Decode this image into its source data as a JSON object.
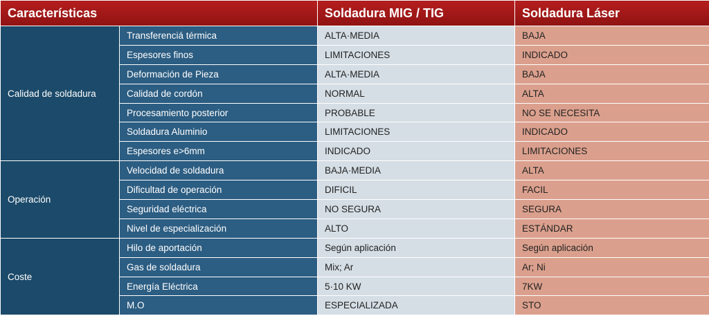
{
  "header": [
    "Características",
    "Soldadura MIG / TIG",
    "Soldadura Láser"
  ],
  "groups": [
    {
      "label": "Calidad de soldadura",
      "rows": [
        [
          "Transferenciá térmica",
          "ALTA·MEDIA",
          "BAJA"
        ],
        [
          "Espesores finos",
          "LIMITACIONES",
          "INDICADO"
        ],
        [
          "Deformación de Pieza",
          "ALTA·MEDIA",
          "BAJA"
        ],
        [
          "Calidad de cordón",
          "NORMAL",
          "ALTA"
        ],
        [
          "Procesamiento posterior",
          "PROBABLE",
          "NO SE NECESITA"
        ],
        [
          "Soldadura Aluminio",
          "LIMITACIONES",
          "INDICADO"
        ],
        [
          "Espesores e>6mm",
          "INDICADO",
          "LIMITACIONES"
        ]
      ]
    },
    {
      "label": "Operación",
      "rows": [
        [
          "Velocidad de soldadura",
          "BAJA·MEDIA",
          "ALTA"
        ],
        [
          "Dificultad de operación",
          "DIFICIL",
          "FACIL"
        ],
        [
          "Seguridad eléctrica",
          "NO SEGURA",
          "SEGURA"
        ],
        [
          "Nivel de especialización",
          "ALTO",
          "ESTÁNDAR"
        ]
      ]
    },
    {
      "label": "Coste",
      "rows": [
        [
          "Hilo de aportación",
          "Según aplicación",
          "Según aplicación"
        ],
        [
          "Gas de soldadura",
          "Mix; Ar",
          "Ar; Ni"
        ],
        [
          "Energía Eléctrica",
          "5·10 KW",
          "7KW"
        ],
        [
          "M.O",
          "ESPECIALIZADA",
          "STO"
        ]
      ]
    }
  ]
}
